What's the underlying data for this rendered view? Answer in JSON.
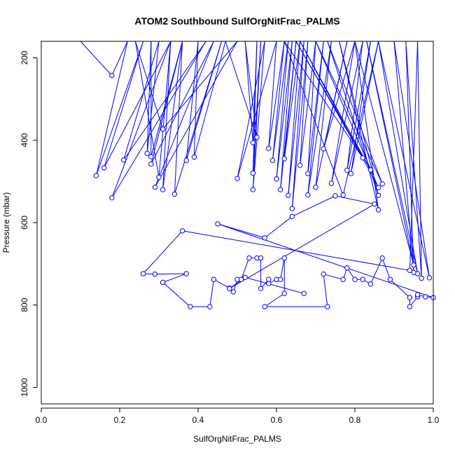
{
  "chart_data": {
    "type": "scatter",
    "title": "ATOM2 Southbound SulfOrgNitFrac_PALMS",
    "xlabel": "SulfOrgNitFrac_PALMS",
    "ylabel": "Pressure (mbar)",
    "xlim": [
      0.0,
      1.0
    ],
    "ylim": [
      1040,
      160
    ],
    "y_reversed": true,
    "x_ticks": [
      0.0,
      0.2,
      0.4,
      0.6,
      0.8,
      1.0
    ],
    "x_tick_labels": [
      "0.0",
      "0.2",
      "0.4",
      "0.6",
      "0.8",
      "1.0"
    ],
    "y_ticks": [
      200,
      400,
      600,
      800,
      1000
    ],
    "y_tick_labels": [
      "200",
      "400",
      "600",
      "800",
      "1000"
    ],
    "color": "#0000ff",
    "grid": false,
    "series": [
      {
        "values": [
          [
            0.1,
            160
          ],
          [
            0.18,
            243
          ],
          [
            0.22,
            160
          ],
          [
            0.14,
            486
          ],
          [
            0.26,
            160
          ],
          [
            0.16,
            467
          ],
          [
            0.33,
            160
          ],
          [
            0.18,
            540
          ],
          [
            0.42,
            160
          ],
          [
            0.21,
            448
          ],
          [
            0.3,
            160
          ],
          [
            0.27,
            432
          ],
          [
            0.28,
            160
          ],
          [
            0.28,
            440
          ],
          [
            0.36,
            160
          ],
          [
            0.28,
            458
          ],
          [
            0.44,
            160
          ],
          [
            0.29,
            514
          ],
          [
            0.5,
            160
          ],
          [
            0.31,
            373
          ],
          [
            0.24,
            160
          ],
          [
            0.3,
            490
          ],
          [
            0.33,
            160
          ],
          [
            0.31,
            520
          ],
          [
            0.36,
            160
          ],
          [
            0.34,
            531
          ],
          [
            0.46,
            160
          ],
          [
            0.37,
            449
          ],
          [
            0.4,
            160
          ],
          [
            0.39,
            441
          ],
          [
            0.47,
            160
          ],
          [
            0.55,
            393
          ],
          [
            0.52,
            160
          ],
          [
            0.54,
            406
          ],
          [
            0.55,
            160
          ],
          [
            0.54,
            480
          ],
          [
            0.56,
            160
          ],
          [
            0.54,
            520
          ],
          [
            0.57,
            160
          ],
          [
            0.5,
            493
          ],
          [
            0.6,
            160
          ],
          [
            0.58,
            420
          ],
          [
            0.62,
            160
          ],
          [
            0.59,
            449
          ],
          [
            0.63,
            160
          ],
          [
            0.6,
            494
          ],
          [
            0.64,
            160
          ],
          [
            0.61,
            520
          ],
          [
            0.65,
            160
          ],
          [
            0.62,
            445
          ],
          [
            0.66,
            160
          ],
          [
            0.63,
            534
          ],
          [
            0.67,
            160
          ],
          [
            0.64,
            566
          ],
          [
            0.68,
            160
          ],
          [
            0.66,
            461
          ],
          [
            0.7,
            160
          ],
          [
            0.68,
            481
          ],
          [
            0.72,
            160
          ],
          [
            0.68,
            533
          ],
          [
            0.74,
            160
          ],
          [
            0.7,
            514
          ],
          [
            0.78,
            160
          ],
          [
            0.72,
            421
          ],
          [
            0.8,
            160
          ],
          [
            0.74,
            505
          ],
          [
            0.82,
            160
          ],
          [
            0.78,
            473
          ],
          [
            0.84,
            160
          ],
          [
            0.79,
            481
          ],
          [
            0.86,
            160
          ],
          [
            0.77,
            533
          ],
          [
            0.62,
            160
          ],
          [
            0.82,
            443
          ],
          [
            0.65,
            160
          ],
          [
            0.84,
            472
          ],
          [
            0.66,
            160
          ],
          [
            0.86,
            515
          ],
          [
            0.7,
            160
          ],
          [
            0.87,
            506
          ],
          [
            0.73,
            160
          ],
          [
            0.86,
            534
          ],
          [
            0.76,
            160
          ],
          [
            0.86,
            569
          ],
          [
            0.8,
            160
          ],
          [
            0.95,
            703
          ],
          [
            0.83,
            160
          ],
          [
            0.96,
            724
          ],
          [
            0.86,
            160
          ],
          [
            0.99,
            734
          ],
          [
            0.9,
            160
          ],
          [
            0.95,
            721
          ],
          [
            0.93,
            160
          ],
          [
            0.97,
            735
          ],
          [
            0.96,
            160
          ],
          [
            0.94,
            716
          ],
          [
            0.36,
            620
          ],
          [
            0.26,
            724
          ],
          [
            0.29,
            725
          ],
          [
            0.37,
            724
          ],
          [
            0.31,
            745
          ],
          [
            0.38,
            804
          ],
          [
            0.43,
            804
          ],
          [
            0.44,
            738
          ],
          [
            0.48,
            759
          ],
          [
            0.49,
            768
          ],
          [
            0.5,
            738
          ],
          [
            0.51,
            738
          ],
          [
            0.53,
            686
          ],
          [
            0.55,
            686
          ],
          [
            0.56,
            686
          ],
          [
            0.56,
            760
          ],
          [
            0.58,
            738
          ],
          [
            0.58,
            748
          ],
          [
            0.6,
            738
          ],
          [
            0.61,
            738
          ],
          [
            0.62,
            686
          ],
          [
            0.62,
            772
          ],
          [
            0.57,
            804
          ],
          [
            0.73,
            804
          ],
          [
            0.72,
            725
          ],
          [
            0.77,
            738
          ],
          [
            0.78,
            710
          ],
          [
            0.8,
            738
          ],
          [
            0.82,
            738
          ],
          [
            0.84,
            749
          ],
          [
            0.87,
            686
          ],
          [
            0.89,
            738
          ],
          [
            0.94,
            782
          ],
          [
            0.94,
            804
          ],
          [
            0.96,
            780
          ],
          [
            0.96,
            775
          ],
          [
            0.98,
            780
          ],
          [
            1.0,
            782
          ],
          [
            0.45,
            603
          ],
          [
            0.57,
            637
          ],
          [
            0.64,
            585
          ],
          [
            0.75,
            535
          ],
          [
            0.85,
            555
          ],
          [
            0.48,
            760
          ],
          [
            0.52,
            733
          ],
          [
            0.67,
            772
          ]
        ]
      }
    ]
  }
}
